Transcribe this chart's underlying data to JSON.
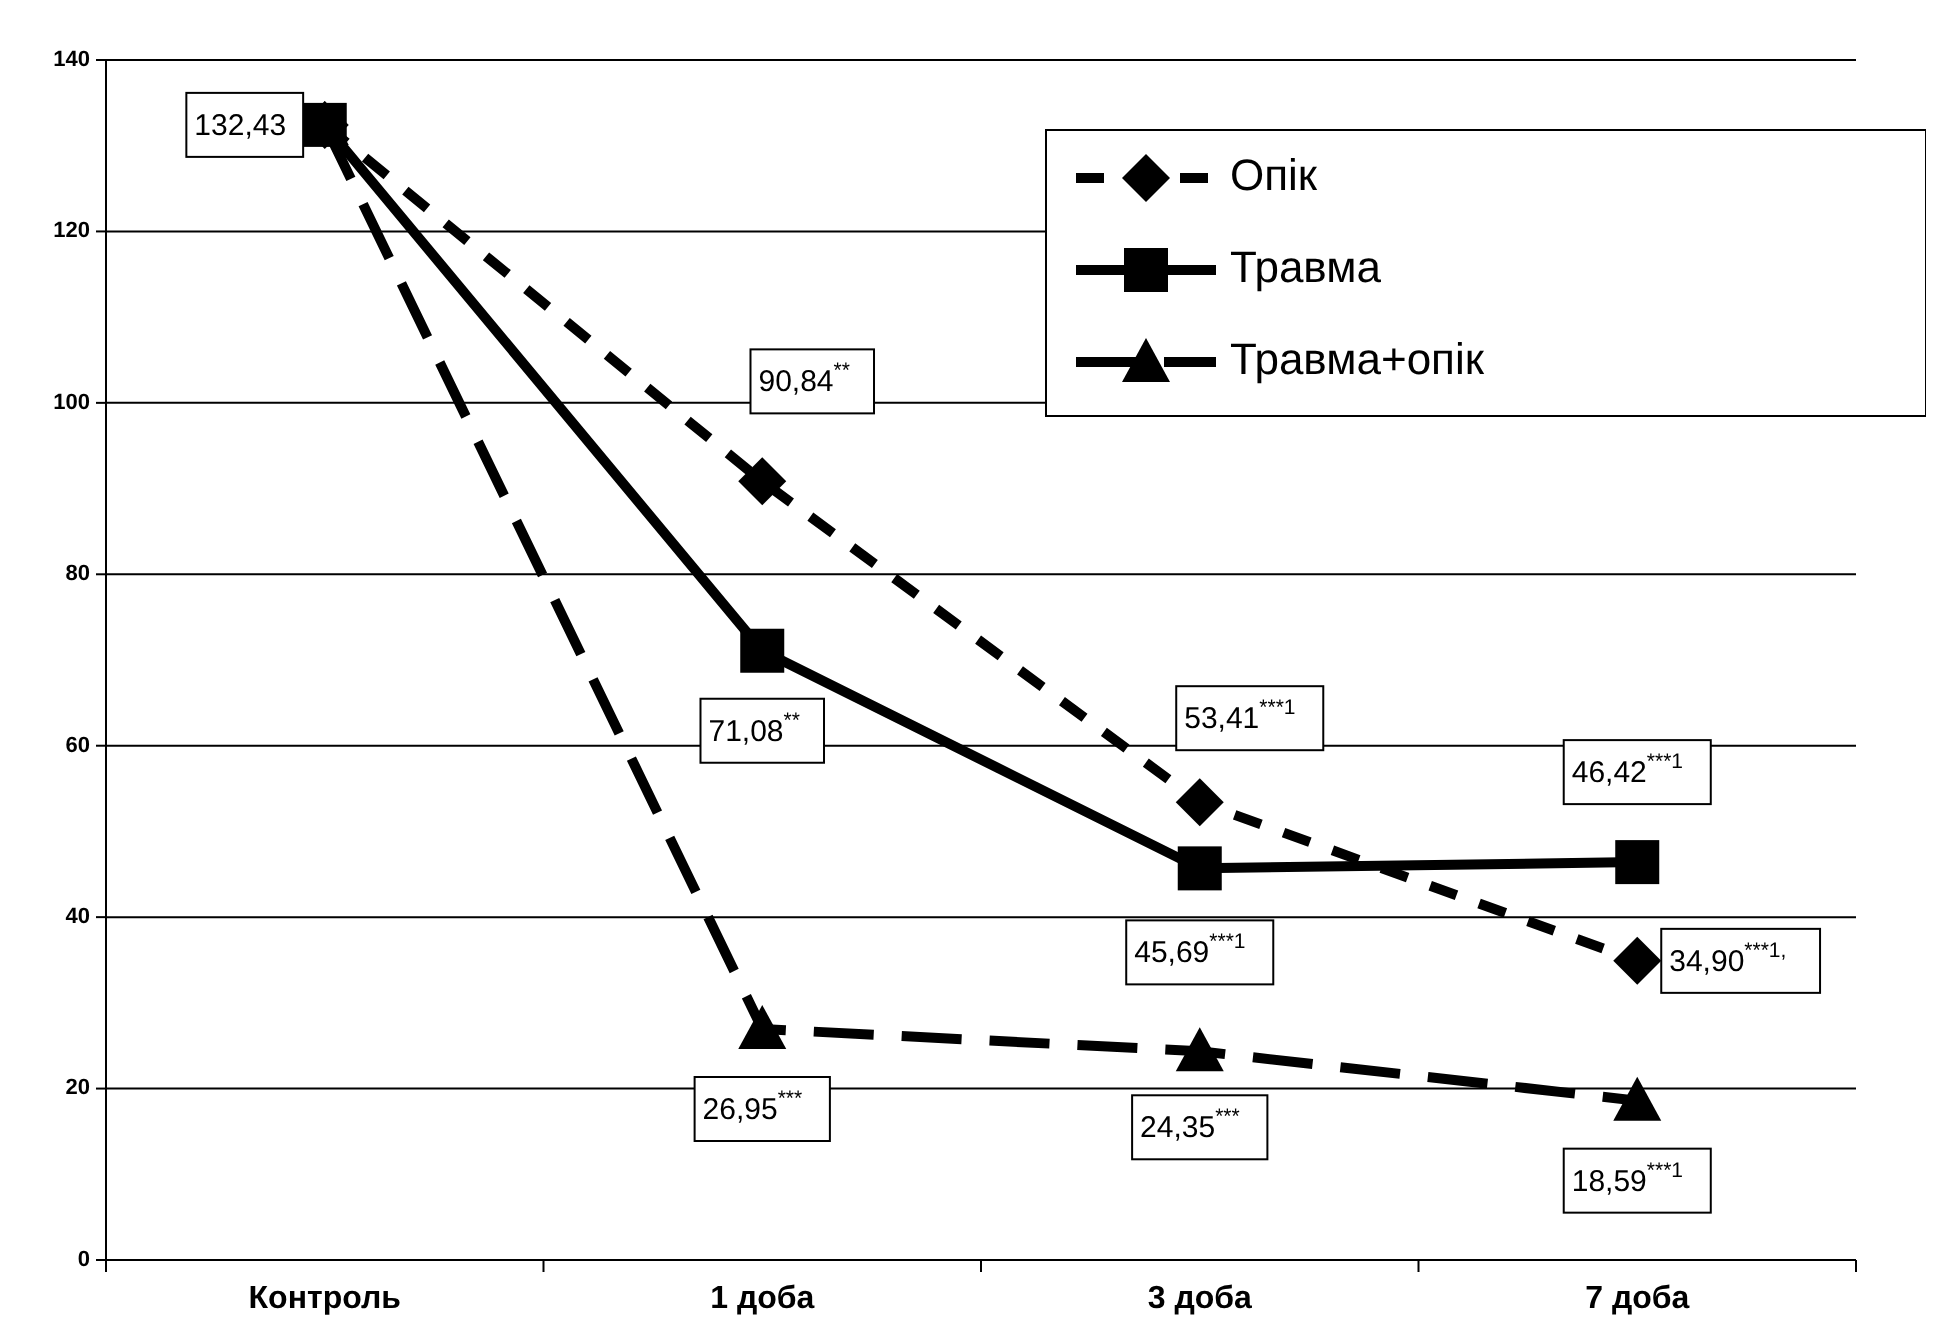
{
  "chart_data": {
    "type": "line",
    "categories": [
      "Контроль",
      "1 доба",
      "3 доба",
      "7 доба"
    ],
    "ylim": [
      0,
      140
    ],
    "yticks": [
      0,
      20,
      40,
      60,
      80,
      100,
      120,
      140
    ],
    "grid": "y",
    "legend": "top right",
    "series": [
      {
        "name": "Опік",
        "color": "#000000",
        "marker": "diamond",
        "line_style": "dotted",
        "values": [
          132.43,
          90.84,
          53.41,
          34.9
        ],
        "value_labels": [
          null,
          "90,84$^{**}$",
          "53,41$^{***1}$",
          "34,90$^{***1,}$"
        ]
      },
      {
        "name": "Травма",
        "color": "#000000",
        "marker": "square",
        "line_style": "solid",
        "values": [
          132.43,
          71.08,
          45.69,
          46.42
        ],
        "value_labels": [
          "132,43",
          "71,08$^{**}$",
          "45,69$^{***1}$",
          "46,42$^{***1}$"
        ]
      },
      {
        "name": "Травма+опік",
        "color": "#000000",
        "marker": "triangle",
        "line_style": "dashed",
        "values": [
          132.43,
          26.95,
          24.35,
          18.59
        ],
        "value_labels": [
          null,
          "26,95$^{***}$",
          "24,35$^{***}$",
          "18,59$^{***1}$"
        ]
      }
    ]
  }
}
